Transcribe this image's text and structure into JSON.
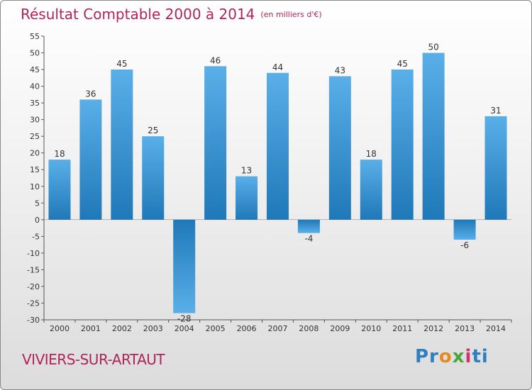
{
  "title": "Résultat Comptable 2000 à 2014",
  "subtitle": "(en milliers d'€)",
  "commune": "VIVIERS-SUR-ARTAUT",
  "logo": {
    "part1": "Pr",
    "part2": "o",
    "part3": "x",
    "part4": "i",
    "part5": "ti"
  },
  "colors": {
    "bar_top": "#5aafe8",
    "bar_bottom": "#1f78b8",
    "title": "#b0245a"
  },
  "chart_data": {
    "type": "bar",
    "title": "Résultat Comptable 2000 à 2014",
    "xlabel": "",
    "ylabel": "",
    "categories": [
      "2000",
      "2001",
      "2002",
      "2003",
      "2004",
      "2005",
      "2006",
      "2007",
      "2008",
      "2009",
      "2010",
      "2011",
      "2012",
      "2013",
      "2014"
    ],
    "values": [
      18,
      36,
      45,
      25,
      -28,
      46,
      13,
      44,
      -4,
      43,
      18,
      45,
      50,
      -6,
      31
    ],
    "ylim": [
      -30,
      55
    ],
    "yticks": [
      -30,
      -25,
      -20,
      -15,
      -10,
      -5,
      0,
      5,
      10,
      15,
      20,
      25,
      30,
      35,
      40,
      45,
      50,
      55
    ],
    "grid": false
  }
}
